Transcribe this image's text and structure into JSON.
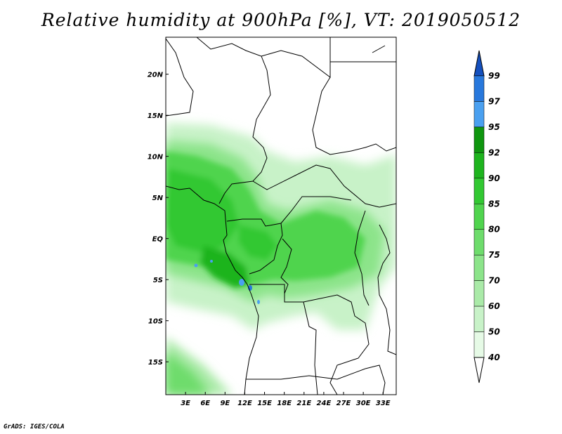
{
  "title": "Relative humidity at 900hPa [%], VT: 2019050512",
  "footer": "GrADS: IGES/COLA",
  "map": {
    "lon_labels": [
      "3E",
      "6E",
      "9E",
      "12E",
      "15E",
      "18E",
      "21E",
      "24E",
      "27E",
      "30E",
      "33E"
    ],
    "lat_labels": [
      "20N",
      "15N",
      "10N",
      "5N",
      "EQ",
      "5S",
      "10S",
      "15S"
    ],
    "lon_values": [
      3,
      6,
      9,
      12,
      15,
      18,
      21,
      24,
      27,
      30,
      33
    ],
    "lat_values": [
      20,
      15,
      10,
      5,
      0,
      -5,
      -10,
      -15
    ],
    "lon_range": [
      0,
      35
    ],
    "lat_range": [
      -19,
      24.5
    ]
  },
  "colorbar": {
    "levels": [
      "40",
      "50",
      "60",
      "70",
      "75",
      "80",
      "85",
      "90",
      "92",
      "95",
      "97",
      "99"
    ],
    "colors": [
      "#ffffff",
      "#e6fae6",
      "#c8f2c8",
      "#aaeaa8",
      "#8ce48a",
      "#6edc6c",
      "#50d44e",
      "#32c832",
      "#1eb41e",
      "#0f960f",
      "#4aa0f0",
      "#2878dc",
      "#1450be"
    ]
  }
}
